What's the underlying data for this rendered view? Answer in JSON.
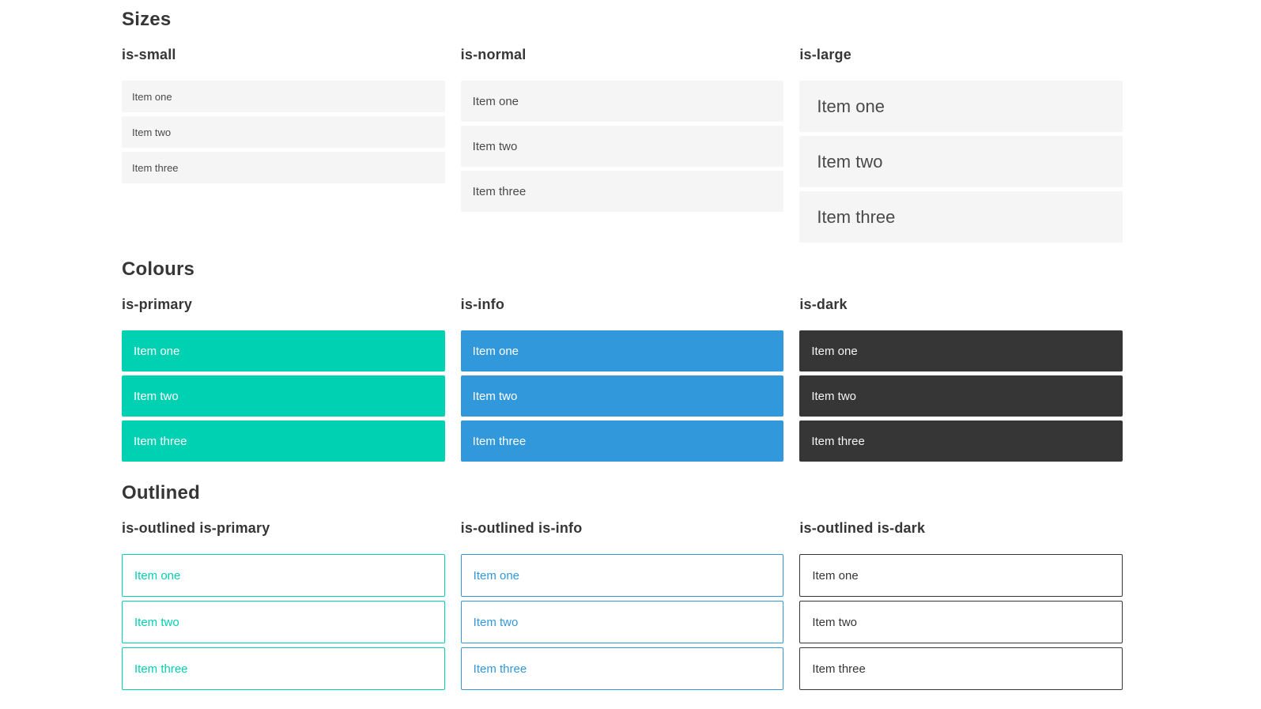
{
  "colors": {
    "primary": "#00d1b2",
    "info": "#3298dc",
    "dark": "#363636",
    "item_bg": "#f5f5f5",
    "item_text": "#4a4a4a",
    "heading_text": "#363636",
    "white_text": "#ffffff",
    "dark_item_text": "#f5f5f5"
  },
  "sections": [
    {
      "title": "Sizes",
      "groups": [
        {
          "heading": "is-small",
          "items": [
            "Item one",
            "Item two",
            "Item three"
          ]
        },
        {
          "heading": "is-normal",
          "items": [
            "Item one",
            "Item two",
            "Item three"
          ]
        },
        {
          "heading": "is-large",
          "items": [
            "Item one",
            "Item two",
            "Item three"
          ]
        }
      ]
    },
    {
      "title": "Colours",
      "groups": [
        {
          "heading": "is-primary",
          "items": [
            "Item one",
            "Item two",
            "Item three"
          ]
        },
        {
          "heading": "is-info",
          "items": [
            "Item one",
            "Item two",
            "Item three"
          ]
        },
        {
          "heading": "is-dark",
          "items": [
            "Item one",
            "Item two",
            "Item three"
          ]
        }
      ]
    },
    {
      "title": "Outlined",
      "groups": [
        {
          "heading": "is-outlined is-primary",
          "items": [
            "Item one",
            "Item two",
            "Item three"
          ]
        },
        {
          "heading": "is-outlined is-info",
          "items": [
            "Item one",
            "Item two",
            "Item three"
          ]
        },
        {
          "heading": "is-outlined is-dark",
          "items": [
            "Item one",
            "Item two",
            "Item three"
          ]
        }
      ]
    }
  ]
}
